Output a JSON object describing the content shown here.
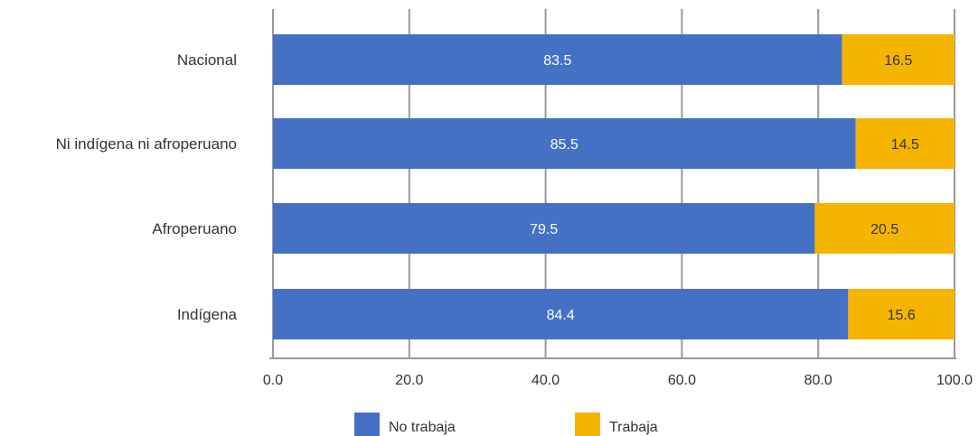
{
  "chart_data": {
    "type": "bar",
    "orientation": "horizontal",
    "stacked": true,
    "categories": [
      "Nacional",
      "Ni indígena ni afroperuano",
      "Afroperuano",
      "Indígena"
    ],
    "series": [
      {
        "name": "No trabaja",
        "color": "#4471c4",
        "values": [
          83.5,
          85.5,
          79.5,
          84.4
        ]
      },
      {
        "name": "Trabaja",
        "color": "#f5b400",
        "values": [
          16.5,
          14.5,
          20.5,
          15.6
        ]
      }
    ],
    "data_labels": [
      [
        "83.5",
        "85.5",
        "79.5",
        "84.4"
      ],
      [
        "16.5",
        "14.5",
        "20.5",
        "15.6"
      ]
    ],
    "xlim": [
      0,
      100
    ],
    "xticks": [
      "0.0",
      "20.0",
      "40.0",
      "60.0",
      "80.0",
      "100.0"
    ],
    "xtick_values": [
      0,
      20,
      40,
      60,
      80,
      100
    ],
    "grid": true,
    "legend_position": "bottom",
    "title": "",
    "xlabel": "",
    "ylabel": ""
  }
}
